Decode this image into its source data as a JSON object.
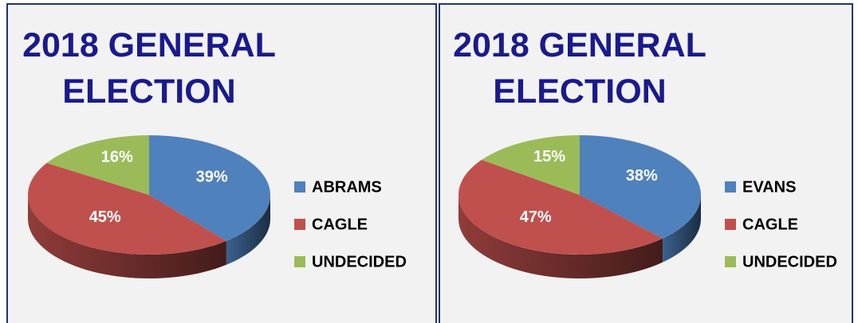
{
  "chart_data": [
    {
      "type": "pie",
      "title": "2018 GENERAL ELECTION",
      "categories": [
        "ABRAMS",
        "CAGLE",
        "UNDECIDED"
      ],
      "values": [
        39,
        45,
        16
      ],
      "value_labels": [
        "39%",
        "45%",
        "16%"
      ],
      "colors": [
        "#4f81bd",
        "#c0504d",
        "#9bbb59"
      ],
      "legend": "right"
    },
    {
      "type": "pie",
      "title": "2018 GENERAL ELECTION",
      "categories": [
        "EVANS",
        "CAGLE",
        "UNDECIDED"
      ],
      "values": [
        38,
        47,
        15
      ],
      "value_labels": [
        "38%",
        "47%",
        "15%"
      ],
      "colors": [
        "#4f81bd",
        "#c0504d",
        "#9bbb59"
      ],
      "legend": "right"
    }
  ]
}
